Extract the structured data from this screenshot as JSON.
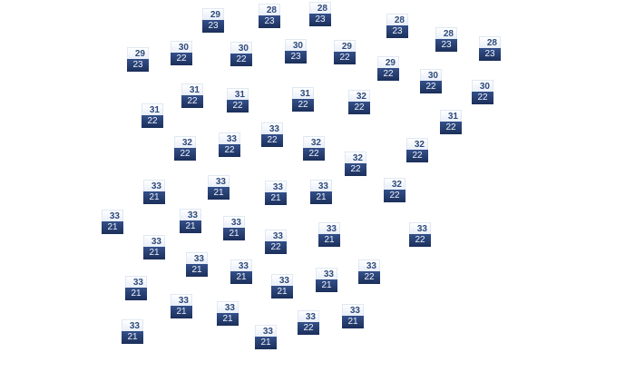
{
  "colors": {
    "high_text": "#2e4a7a",
    "low_bg": "#1b2f5a",
    "low_text": "#eef2fa"
  },
  "markers": [
    {
      "high": "29",
      "low": "23"
    },
    {
      "high": "28",
      "low": "23"
    },
    {
      "high": "28",
      "low": "23"
    },
    {
      "high": "28",
      "low": "23"
    },
    {
      "high": "28",
      "low": "23"
    },
    {
      "high": "28",
      "low": "23"
    },
    {
      "high": "29",
      "low": "23"
    },
    {
      "high": "30",
      "low": "22"
    },
    {
      "high": "30",
      "low": "22"
    },
    {
      "high": "30",
      "low": "23"
    },
    {
      "high": "29",
      "low": "22"
    },
    {
      "high": "29",
      "low": "22"
    },
    {
      "high": "30",
      "low": "22"
    },
    {
      "high": "30",
      "low": "22"
    },
    {
      "high": "31",
      "low": "22"
    },
    {
      "high": "31",
      "low": "22"
    },
    {
      "high": "31",
      "low": "22"
    },
    {
      "high": "32",
      "low": "22"
    },
    {
      "high": "31",
      "low": "22"
    },
    {
      "high": "31",
      "low": "22"
    },
    {
      "high": "32",
      "low": "22"
    },
    {
      "high": "33",
      "low": "22"
    },
    {
      "high": "33",
      "low": "22"
    },
    {
      "high": "32",
      "low": "22"
    },
    {
      "high": "32",
      "low": "22"
    },
    {
      "high": "32",
      "low": "22"
    },
    {
      "high": "33",
      "low": "21"
    },
    {
      "high": "33",
      "low": "21"
    },
    {
      "high": "33",
      "low": "21"
    },
    {
      "high": "33",
      "low": "21"
    },
    {
      "high": "32",
      "low": "22"
    },
    {
      "high": "33",
      "low": "21"
    },
    {
      "high": "33",
      "low": "21"
    },
    {
      "high": "33",
      "low": "21"
    },
    {
      "high": "33",
      "low": "22"
    },
    {
      "high": "33",
      "low": "21"
    },
    {
      "high": "33",
      "low": "22"
    },
    {
      "high": "33",
      "low": "21"
    },
    {
      "high": "33",
      "low": "21"
    },
    {
      "high": "33",
      "low": "21"
    },
    {
      "high": "33",
      "low": "21"
    },
    {
      "high": "33",
      "low": "21"
    },
    {
      "high": "33",
      "low": "22"
    },
    {
      "high": "33",
      "low": "21"
    },
    {
      "high": "33",
      "low": "21"
    },
    {
      "high": "33",
      "low": "21"
    },
    {
      "high": "33",
      "low": "22"
    },
    {
      "high": "33",
      "low": "21"
    },
    {
      "high": "33",
      "low": "21"
    },
    {
      "high": "33",
      "low": "21"
    }
  ]
}
